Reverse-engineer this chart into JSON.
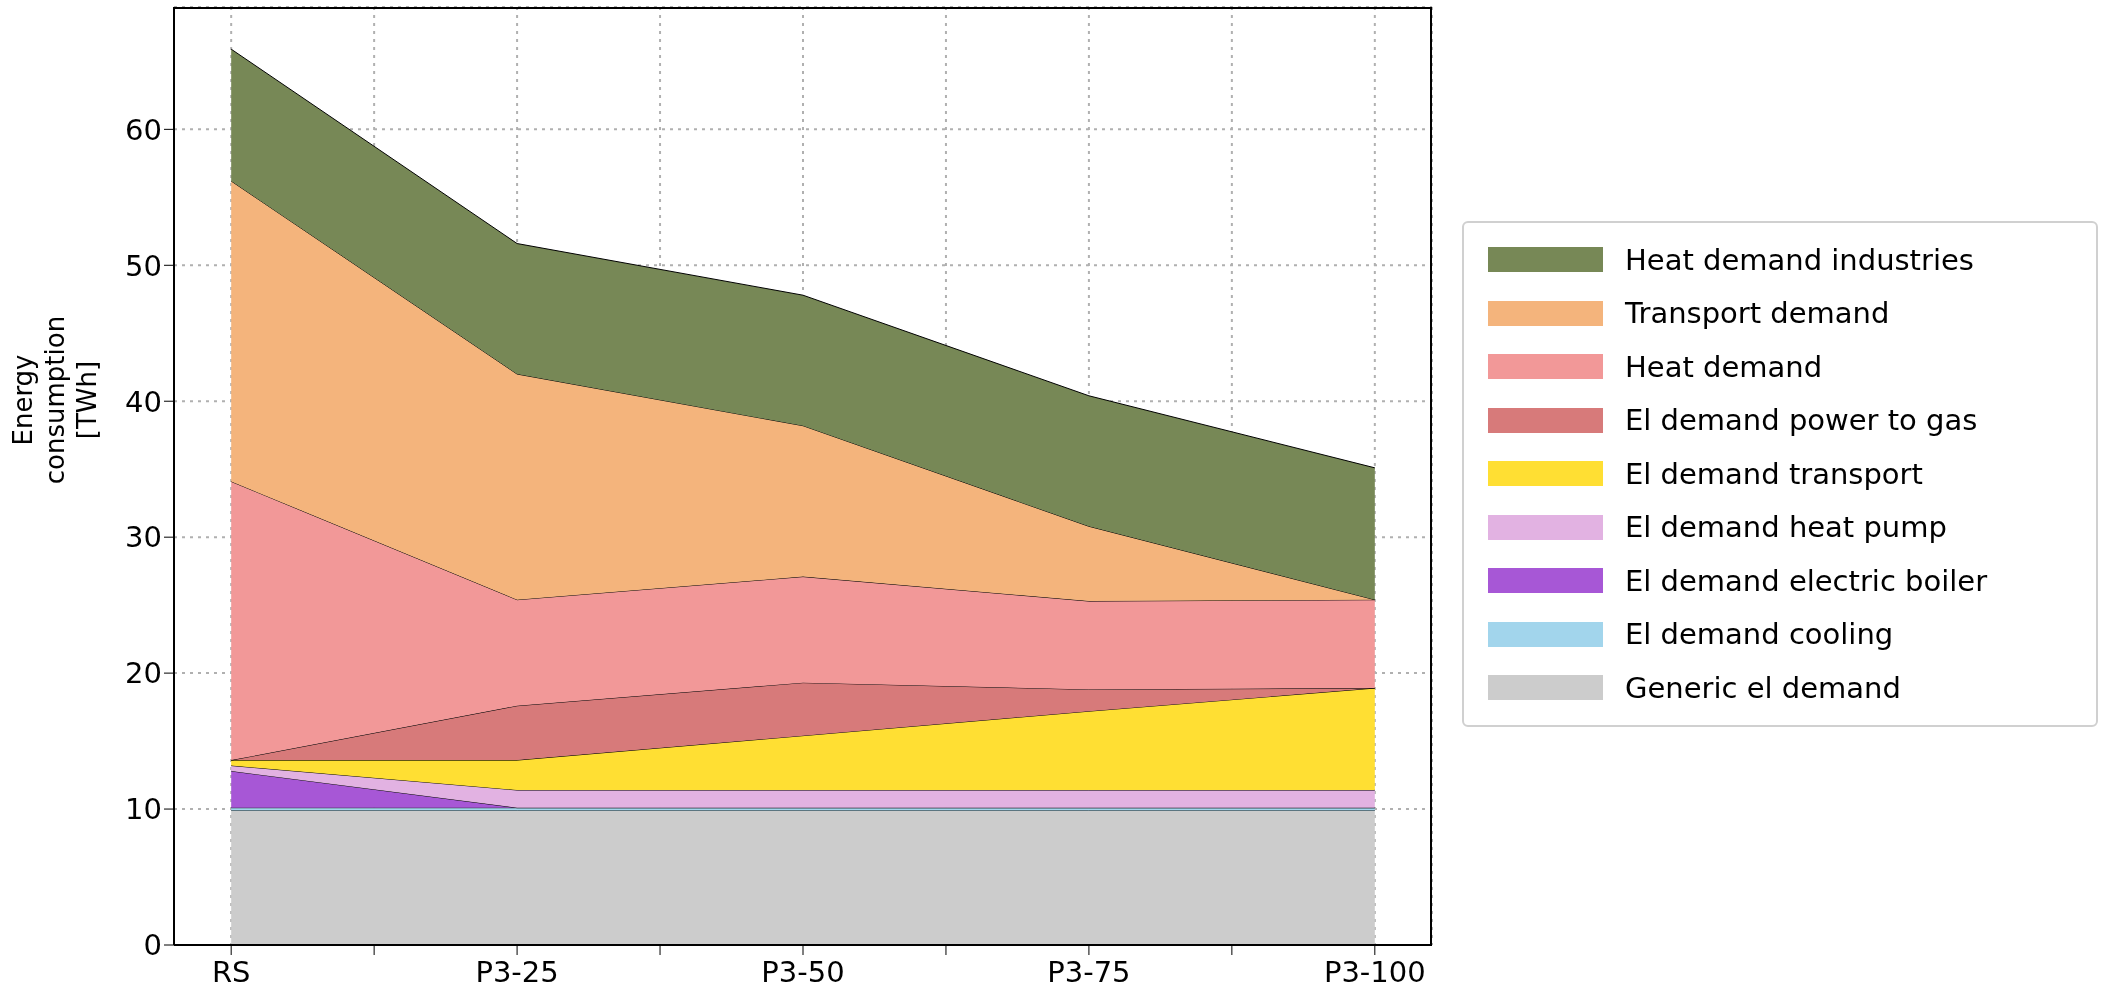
{
  "chart_data": {
    "type": "area",
    "stacked": true,
    "ylabel": "Energy consumption [TWh]",
    "categories": [
      "RS",
      "P3-25",
      "P3-50",
      "P3-75",
      "P3-100"
    ],
    "ylim": [
      0,
      69
    ],
    "yticks": [
      0,
      10,
      20,
      30,
      40,
      50,
      60
    ],
    "grid": true,
    "legend": "right",
    "line_style": "solid",
    "series": [
      {
        "name": "Generic el demand",
        "color": "#cccccc",
        "values": [
          9.9,
          9.9,
          9.9,
          9.9,
          9.9
        ]
      },
      {
        "name": "El demand cooling",
        "color": "#a2d5ec",
        "values": [
          0.2,
          0.2,
          0.2,
          0.2,
          0.2
        ]
      },
      {
        "name": "El demand electric boiler",
        "color": "#a757d6",
        "values": [
          2.7,
          0,
          0,
          0,
          0
        ]
      },
      {
        "name": "El demand heat pump",
        "color": "#e2b2e2",
        "values": [
          0.4,
          1.3,
          1.3,
          1.3,
          1.3
        ]
      },
      {
        "name": "El demand transport",
        "color": "#ffdf33",
        "values": [
          0.4,
          2.2,
          4.0,
          5.8,
          7.5
        ]
      },
      {
        "name": "El demand power to gas",
        "color": "#d77a7a",
        "values": [
          0,
          4.0,
          3.9,
          1.6,
          0
        ]
      },
      {
        "name": "Heat demand",
        "color": "#f29898",
        "values": [
          20.5,
          7.8,
          7.8,
          6.5,
          6.5
        ]
      },
      {
        "name": "Transport demand",
        "color": "#f4b47c",
        "values": [
          22.1,
          16.6,
          11.1,
          5.5,
          0
        ]
      },
      {
        "name": "Heat demand industries",
        "color": "#778856",
        "values": [
          9.7,
          9.6,
          9.6,
          9.6,
          9.7
        ]
      }
    ]
  }
}
